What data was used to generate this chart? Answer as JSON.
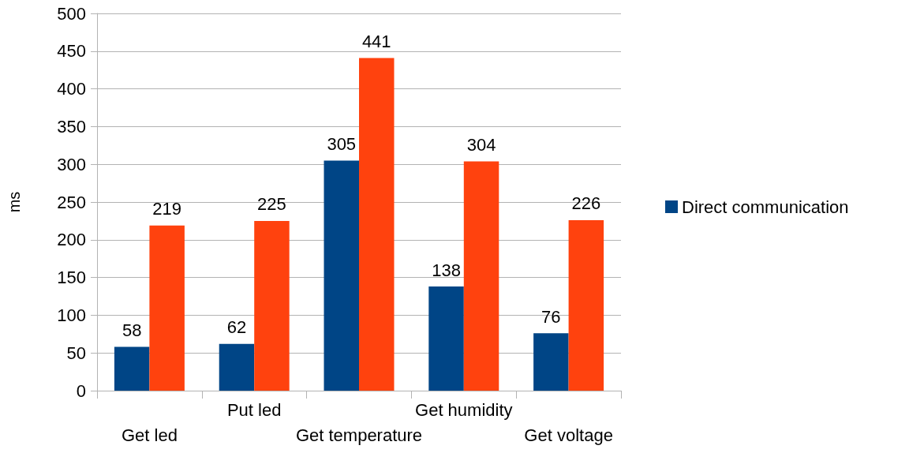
{
  "chart_data": {
    "type": "bar",
    "ylabel": "ms",
    "categories": [
      "Get led",
      "Put led",
      "Get temperature",
      "Get humidity",
      "Get voltage"
    ],
    "series": [
      {
        "name": "Direct communication",
        "color": "#004586",
        "values": [
          58,
          62,
          305,
          138,
          76
        ]
      },
      {
        "color": "#ff420e",
        "values": [
          219,
          225,
          441,
          304,
          226
        ]
      }
    ],
    "ylim": [
      0,
      500
    ],
    "yticks": [
      0,
      50,
      100,
      150,
      200,
      250,
      300,
      350,
      400,
      450,
      500
    ],
    "grid": "y",
    "legend": "right",
    "data_labels": true
  }
}
